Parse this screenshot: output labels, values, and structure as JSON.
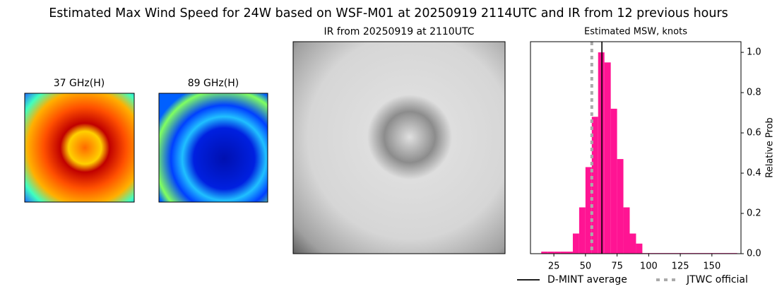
{
  "title": "Estimated Max Wind Speed for 24W based on WSF-M01 at 20250919 2114UTC and IR from 12 previous hours",
  "panels": [
    {
      "title": "37 GHz(H)"
    },
    {
      "title": "89 GHz(H)"
    },
    {
      "title": "IR from 20250919 at 2110UTC"
    }
  ],
  "chart_data": {
    "type": "histogram",
    "title": "Estimated MSW, knots",
    "ylabel": "Relative Prob",
    "bins": [
      15,
      20,
      25,
      30,
      35,
      40,
      45,
      50,
      55,
      60,
      65,
      70,
      75,
      80,
      85,
      90,
      95,
      170
    ],
    "values": [
      0.01,
      0.01,
      0.01,
      0.01,
      0.01,
      0.1,
      0.23,
      0.43,
      0.68,
      1.0,
      0.95,
      0.72,
      0.47,
      0.23,
      0.1,
      0.05,
      0.003
    ],
    "color": "#ff1493",
    "xlim": [
      6.5,
      173
    ],
    "ylim": [
      0,
      1.053
    ],
    "xticks": [
      25,
      50,
      75,
      100,
      125,
      150
    ],
    "yticks": [
      {
        "value": 0,
        "label": "0.0"
      },
      {
        "value": 0.2,
        "label": "0.2"
      },
      {
        "value": 0.4,
        "label": "0.4"
      },
      {
        "value": 0.6,
        "label": "0.6"
      },
      {
        "value": 0.8,
        "label": "0.8"
      },
      {
        "value": 1.0,
        "label": "1.0"
      }
    ],
    "y_axis_side": "right",
    "lines": [
      {
        "name": "D-MINT average",
        "value": 63,
        "color": "#000000",
        "style": "solid"
      },
      {
        "name": "JTWC official",
        "value": 55,
        "color": "#aaaaaa",
        "style": "dotted"
      }
    ]
  }
}
